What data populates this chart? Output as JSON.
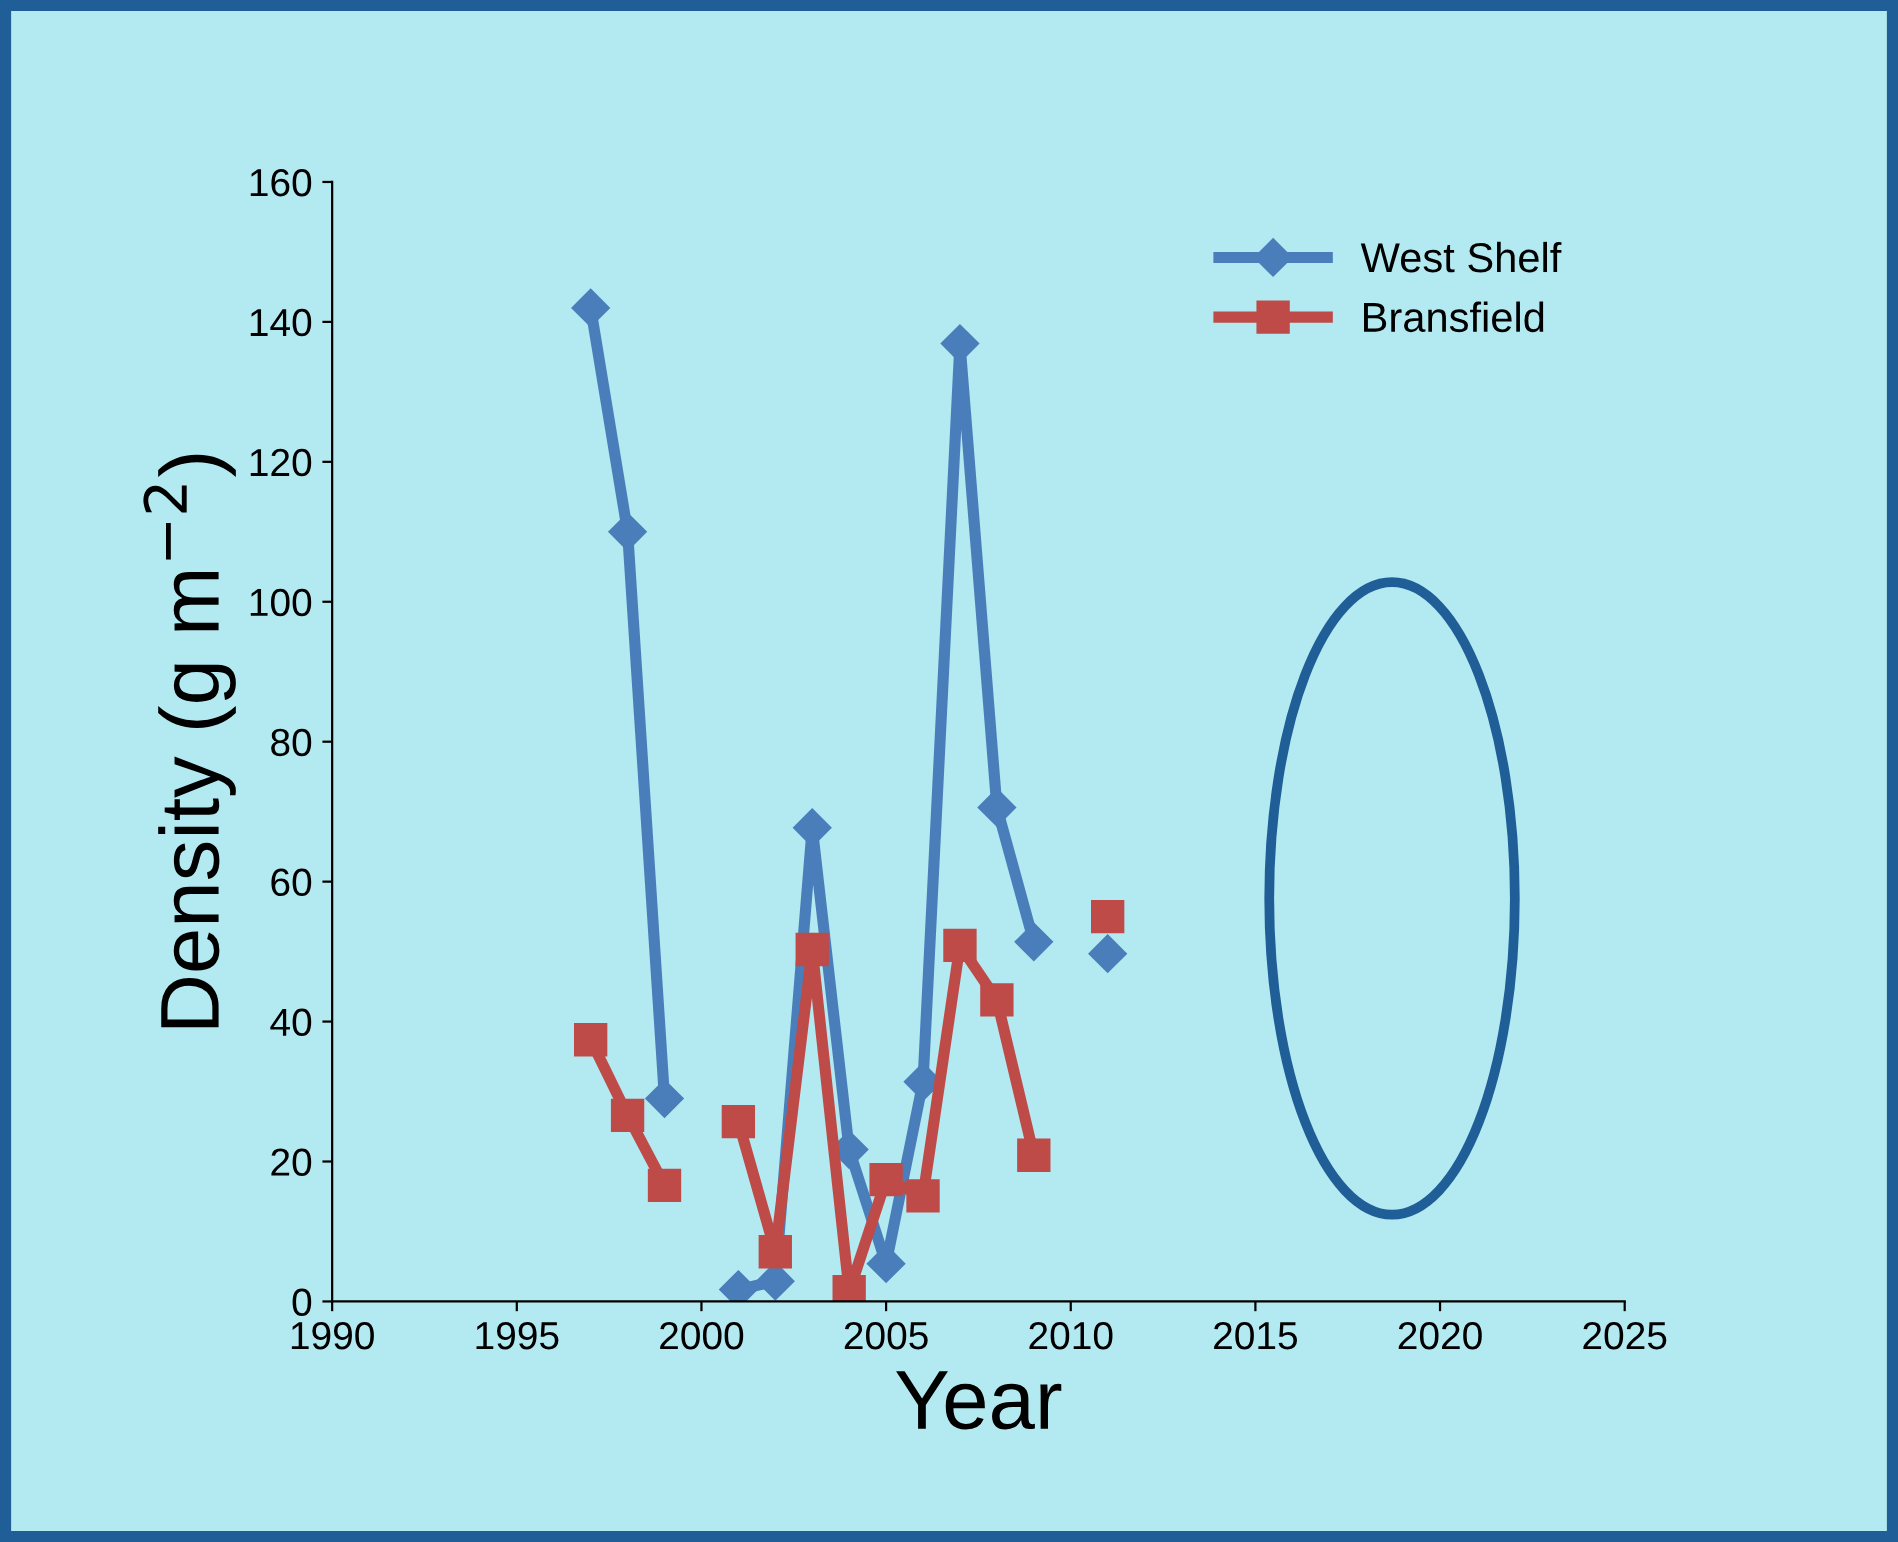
{
  "chart_data": {
    "type": "line",
    "xlabel": "Year",
    "ylabel": "Density (g m$^{−2}$)",
    "x": [
      1997,
      1998,
      1999,
      2000,
      2001,
      2002,
      2003,
      2004,
      2005,
      2006,
      2007,
      2008,
      2009,
      2010,
      2011
    ],
    "series": [
      {
        "name": "West Shelf",
        "color": "#4a7ebb",
        "marker": "diamond",
        "values": [
          142,
          110,
          29,
          null,
          1.7,
          2.9,
          67.7,
          21.7,
          5.4,
          31.4,
          136.9,
          70.6,
          51.4,
          null,
          49.7
        ]
      },
      {
        "name": "Bransfield",
        "color": "#be4b48",
        "marker": "square",
        "values": [
          37.4,
          26.6,
          16.6,
          null,
          25.7,
          7.1,
          50.3,
          1.4,
          17.4,
          15.1,
          50.9,
          43.1,
          20.9,
          null,
          55
        ]
      }
    ],
    "xlim": [
      1990,
      2025
    ],
    "xticks": [
      1990,
      1995,
      2000,
      2005,
      2010,
      2015,
      2020,
      2025
    ],
    "ylim": [
      0,
      160
    ],
    "yticks": [
      0,
      20,
      40,
      60,
      80,
      100,
      120,
      140,
      160
    ],
    "grid": false,
    "legend": "top right",
    "line_style": "solid"
  }
}
